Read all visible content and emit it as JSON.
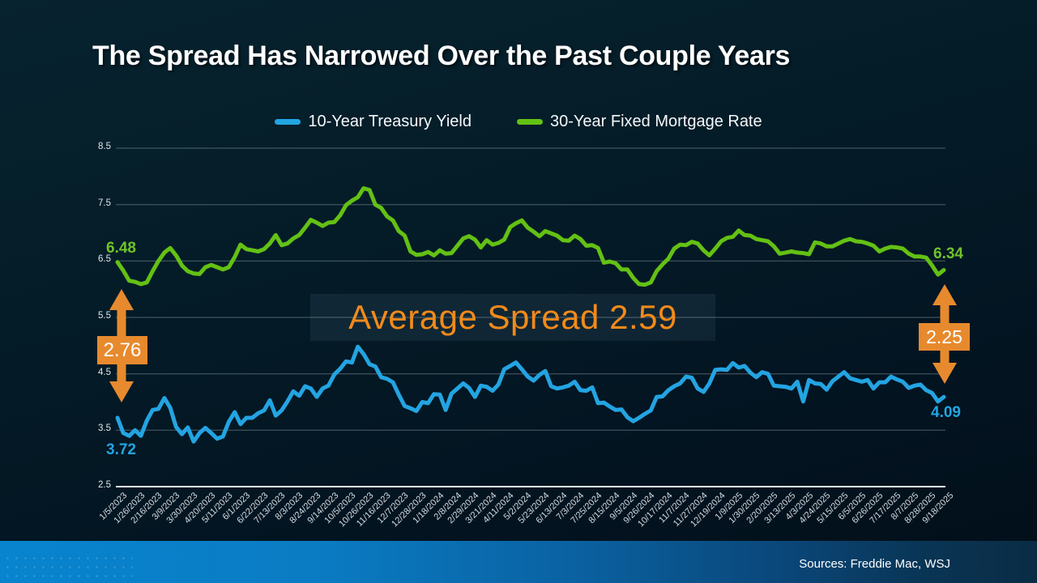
{
  "slide": {
    "title": "The Spread Has Narrowed Over the Past Couple Years",
    "source_note": "Sources: Freddie Mac, WSJ"
  },
  "legend": [
    {
      "label": "10-Year Treasury Yield",
      "color": "#23a4e2"
    },
    {
      "label": "30-Year Fixed Mortgage Rate",
      "color": "#63c114"
    }
  ],
  "annotations": {
    "avg_spread": "Average Spread 2.59",
    "left_spread": "2.76",
    "right_spread": "2.25",
    "green_start": "6.48",
    "green_end": "6.34",
    "blue_start": "3.72",
    "blue_end": "4.09"
  },
  "colors": {
    "blue": "#23a4e2",
    "green": "#63c114",
    "green_label": "#6fc32a",
    "orange": "#e78a2e",
    "orange_text": "#f28a1a",
    "grid": "rgba(150,168,175,0.5)",
    "axis": "#dfe9ee"
  },
  "chart_data": {
    "type": "line",
    "title": "",
    "xlabel": "",
    "ylabel": "",
    "ylim": [
      2.5,
      8.5
    ],
    "y_ticks": [
      8.5,
      7.5,
      6.5,
      5.5,
      4.5,
      3.5,
      2.5
    ],
    "grid": true,
    "legend_position": "top",
    "label_every": 3,
    "x_tick_labels": [
      "1/5/2023",
      "1/26/2023",
      "2/16/2023",
      "3/9/2023",
      "3/30/2023",
      "4/20/2023",
      "5/11/2023",
      "6/1/2023",
      "6/22/2023",
      "7/13/2023",
      "8/3/2023",
      "8/24/2023",
      "9/14/2023",
      "10/5/2023",
      "10/26/2023",
      "11/16/2023",
      "12/7/2023",
      "12/28/2023",
      "1/18/2024",
      "2/8/2024",
      "2/29/2024",
      "3/21/2024",
      "4/11/2024",
      "5/2/2024",
      "5/23/2024",
      "6/13/2024",
      "7/3/2024",
      "7/25/2024",
      "8/15/2024",
      "9/5/2024",
      "9/26/2024",
      "10/17/2024",
      "11/7/2024",
      "11/27/2024",
      "12/19/2024",
      "1/9/2025",
      "1/30/2025",
      "2/20/2025",
      "3/13/2025",
      "4/3/2025",
      "4/24/2025",
      "5/15/2025",
      "6/5/2025",
      "6/26/2025",
      "7/17/2025",
      "8/7/2025",
      "8/28/2025",
      "9/18/2025"
    ],
    "series": [
      {
        "name": "10-Year Treasury Yield",
        "color": "#23a4e2",
        "values": [
          3.72,
          3.45,
          3.4,
          3.5,
          3.4,
          3.67,
          3.86,
          3.88,
          4.07,
          3.9,
          3.56,
          3.43,
          3.55,
          3.3,
          3.45,
          3.54,
          3.45,
          3.35,
          3.39,
          3.65,
          3.82,
          3.61,
          3.72,
          3.72,
          3.8,
          3.85,
          4.03,
          3.76,
          3.85,
          4.01,
          4.19,
          4.11,
          4.28,
          4.24,
          4.09,
          4.24,
          4.29,
          4.49,
          4.59,
          4.72,
          4.7,
          4.98,
          4.85,
          4.67,
          4.63,
          4.44,
          4.41,
          4.35,
          4.13,
          3.93,
          3.89,
          3.84,
          4.0,
          3.98,
          4.14,
          4.13,
          3.86,
          4.15,
          4.24,
          4.33,
          4.25,
          4.09,
          4.29,
          4.27,
          4.2,
          4.31,
          4.58,
          4.64,
          4.7,
          4.58,
          4.45,
          4.38,
          4.48,
          4.55,
          4.28,
          4.24,
          4.26,
          4.29,
          4.36,
          4.21,
          4.2,
          4.26,
          3.98,
          3.99,
          3.92,
          3.86,
          3.87,
          3.73,
          3.66,
          3.72,
          3.79,
          3.85,
          4.09,
          4.1,
          4.21,
          4.28,
          4.33,
          4.45,
          4.43,
          4.24,
          4.18,
          4.33,
          4.57,
          4.58,
          4.57,
          4.69,
          4.61,
          4.64,
          4.52,
          4.44,
          4.53,
          4.5,
          4.29,
          4.28,
          4.27,
          4.24,
          4.36,
          4.01,
          4.39,
          4.33,
          4.32,
          4.22,
          4.37,
          4.45,
          4.53,
          4.42,
          4.39,
          4.36,
          4.39,
          4.24,
          4.35,
          4.35,
          4.45,
          4.4,
          4.36,
          4.25,
          4.29,
          4.31,
          4.21,
          4.16,
          4.01,
          4.09
        ]
      },
      {
        "name": "30-Year Fixed Mortgage Rate",
        "color": "#63c114",
        "values": [
          6.48,
          6.33,
          6.15,
          6.13,
          6.09,
          6.12,
          6.32,
          6.5,
          6.65,
          6.73,
          6.6,
          6.42,
          6.32,
          6.28,
          6.27,
          6.39,
          6.43,
          6.39,
          6.35,
          6.39,
          6.57,
          6.79,
          6.71,
          6.69,
          6.67,
          6.71,
          6.81,
          6.96,
          6.78,
          6.81,
          6.9,
          6.96,
          7.09,
          7.23,
          7.18,
          7.12,
          7.18,
          7.19,
          7.31,
          7.49,
          7.57,
          7.63,
          7.79,
          7.76,
          7.5,
          7.44,
          7.29,
          7.22,
          7.03,
          6.95,
          6.67,
          6.61,
          6.62,
          6.66,
          6.6,
          6.69,
          6.63,
          6.64,
          6.77,
          6.9,
          6.94,
          6.88,
          6.74,
          6.87,
          6.79,
          6.82,
          6.88,
          7.1,
          7.17,
          7.22,
          7.09,
          7.02,
          6.94,
          7.03,
          6.99,
          6.95,
          6.87,
          6.86,
          6.95,
          6.89,
          6.77,
          6.78,
          6.73,
          6.47,
          6.49,
          6.46,
          6.35,
          6.35,
          6.2,
          6.09,
          6.08,
          6.12,
          6.32,
          6.44,
          6.54,
          6.72,
          6.79,
          6.78,
          6.84,
          6.81,
          6.69,
          6.6,
          6.72,
          6.85,
          6.91,
          6.93,
          7.04,
          6.96,
          6.95,
          6.89,
          6.87,
          6.85,
          6.76,
          6.63,
          6.65,
          6.67,
          6.65,
          6.64,
          6.62,
          6.83,
          6.81,
          6.76,
          6.76,
          6.81,
          6.86,
          6.89,
          6.85,
          6.84,
          6.81,
          6.77,
          6.67,
          6.72,
          6.75,
          6.74,
          6.72,
          6.63,
          6.58,
          6.58,
          6.56,
          6.42,
          6.26,
          6.34
        ]
      }
    ]
  }
}
